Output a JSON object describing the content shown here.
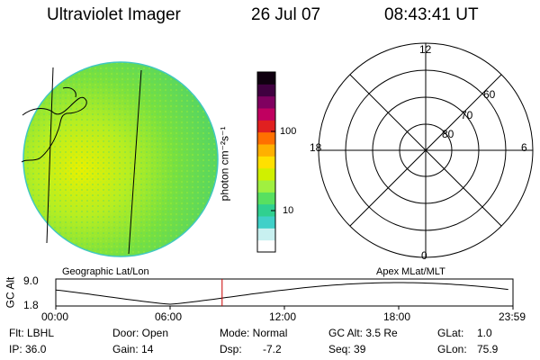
{
  "header": {
    "title": "Ultraviolet Imager",
    "date": "26 Jul 07",
    "time": "08:43:41 UT"
  },
  "colorbar": {
    "unit_label": "photon cm⁻²s⁻¹",
    "ticks": [
      "100",
      "10"
    ],
    "colors": [
      "#ffffff",
      "#c8f0f0",
      "#40d0c8",
      "#30d090",
      "#58e060",
      "#a0f040",
      "#d0f000",
      "#ffe000",
      "#ffb000",
      "#ff7000",
      "#e02020",
      "#c00060",
      "#800060",
      "#400040",
      "#100010"
    ]
  },
  "polar_plot": {
    "mlt_labels": {
      "top": "12",
      "left": "18",
      "right": "6",
      "bottom": "0"
    },
    "mlat_labels": [
      "60",
      "70",
      "80"
    ]
  },
  "timeline": {
    "left_caption": "Geographic Lat/Lon",
    "right_caption": "Apex MLat/MLT",
    "axis_label": "GC Alt",
    "y_values": [
      "9.0",
      "1.8"
    ],
    "x_ticks": [
      "00:00",
      "06:00",
      "12:00",
      "18:00",
      "23:59"
    ],
    "current_time_hours": 8.73,
    "marker_color": "#cc0000"
  },
  "info": {
    "row1": [
      "Flt: LBHL",
      "Door: Open",
      "Mode: Normal",
      "GC Alt: 3.5 Re",
      "GLat:",
      "1.0"
    ],
    "row2": [
      "IP: 36.0",
      "Gain: 14",
      "Dsp:",
      "-7.2",
      "Seq: 39",
      "GLon:",
      "75.9"
    ]
  }
}
